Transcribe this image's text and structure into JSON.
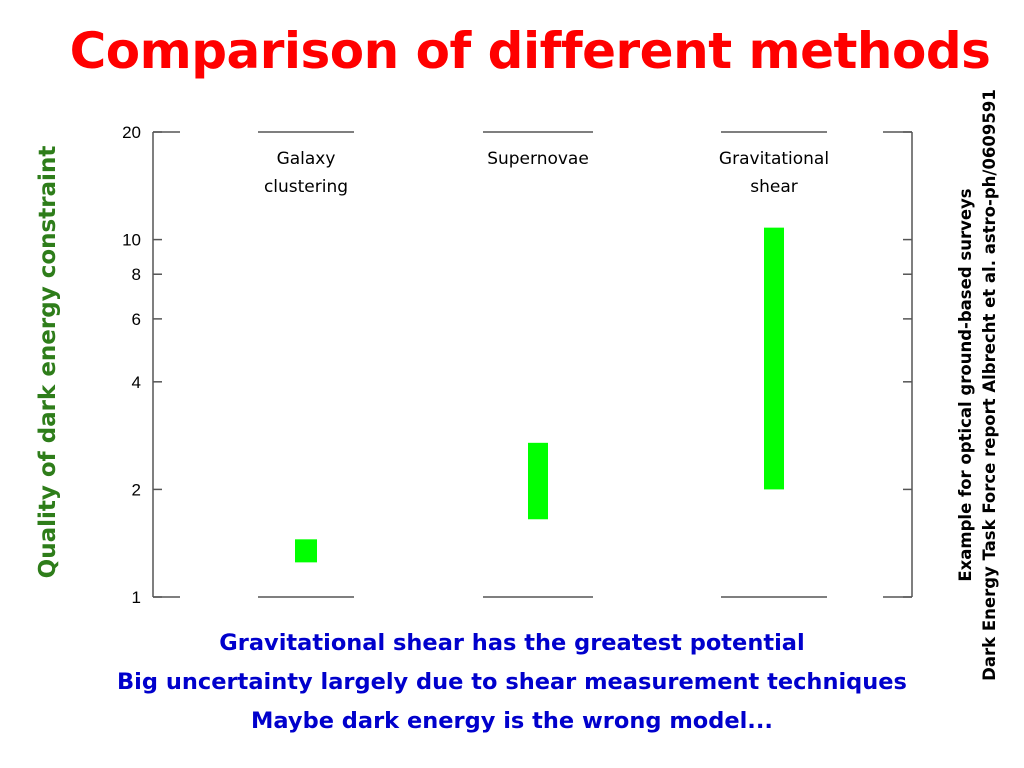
{
  "title": "Comparison of different methods",
  "colors": {
    "title": "#ff0000",
    "ylabel": "#2e7d1a",
    "bars": "#00ff00",
    "bottom_text": "#0000cc"
  },
  "side_note": {
    "line1": "Example for optical ground-based surveys",
    "line2": "Dark Energy Task Force report Albrecht et al. astro-ph/0609591"
  },
  "bottom_text": {
    "line1": "Gravitational shear has the greatest potential",
    "line2": "Big uncertainty largely due to shear measurement techniques",
    "line3": "Maybe dark energy is the wrong model..."
  },
  "chart_data": {
    "type": "bar",
    "scale": "log",
    "ylabel": "Quality of dark energy constraint",
    "ylim": [
      1,
      20
    ],
    "yticks": [
      {
        "value": 1,
        "label": "1"
      },
      {
        "value": 2,
        "label": "2"
      },
      {
        "value": 4,
        "label": "4"
      },
      {
        "value": 6,
        "label": "6"
      },
      {
        "value": 8,
        "label": "8"
      },
      {
        "value": 10,
        "label": "10"
      },
      {
        "value": 20,
        "label": "20"
      }
    ],
    "categories": [
      {
        "label_lines": [
          "Galaxy",
          "clustering"
        ],
        "low": 1.25,
        "high": 1.45
      },
      {
        "label_lines": [
          "Supernovae"
        ],
        "low": 1.65,
        "high": 2.7
      },
      {
        "label_lines": [
          "Gravitational",
          "shear"
        ],
        "low": 2.0,
        "high": 10.8
      }
    ]
  }
}
